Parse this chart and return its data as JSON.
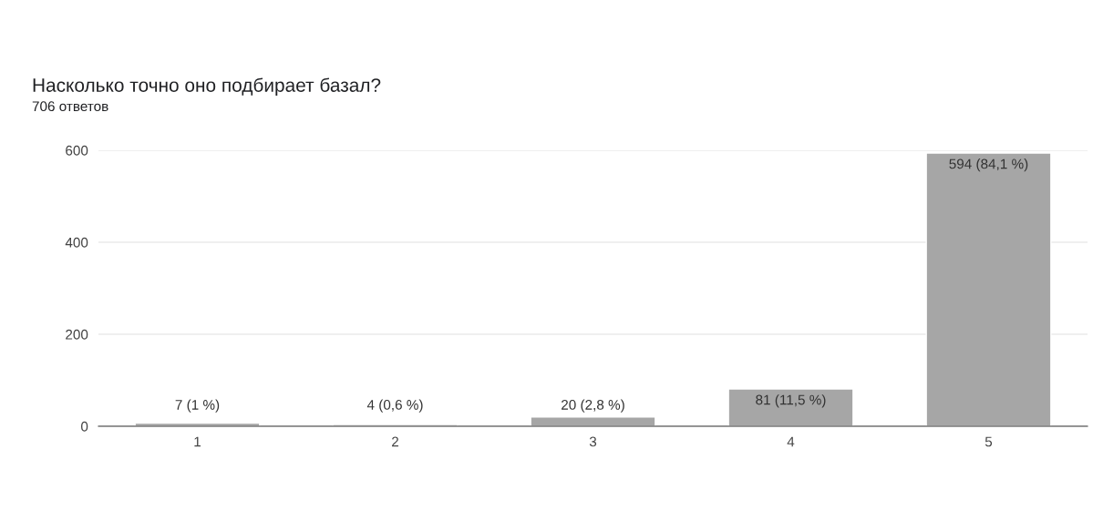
{
  "chart_data": {
    "type": "bar",
    "title": "Насколько точно оно подбирает базал?",
    "subtitle": "706 ответов",
    "categories": [
      "1",
      "2",
      "3",
      "4",
      "5"
    ],
    "values": [
      7,
      4,
      20,
      81,
      594
    ],
    "value_labels": [
      "7 (1 %)",
      "4 (0,6 %)",
      "20 (2,8 %)",
      "81 (11,5 %)",
      "594 (84,1 %)"
    ],
    "color": "#a6a6a6",
    "ylim": [
      0,
      600
    ],
    "yticks": [
      0,
      200,
      400,
      600
    ],
    "grid": "y",
    "legend": false
  }
}
